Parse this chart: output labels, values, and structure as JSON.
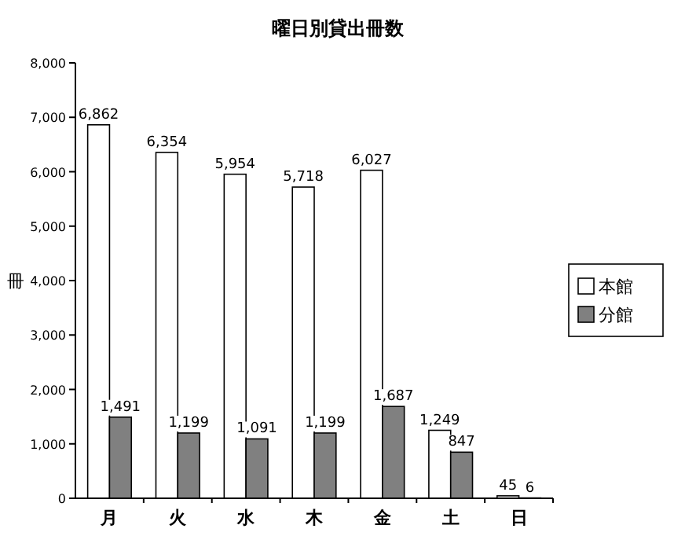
{
  "chart_data": {
    "type": "bar",
    "title": "曜日別貸出冊数",
    "ylabel": "冊",
    "categories": [
      "月",
      "火",
      "水",
      "木",
      "金",
      "土",
      "日"
    ],
    "series": [
      {
        "name": "本館",
        "color": "#ffffff",
        "values": [
          6862,
          6354,
          5954,
          5718,
          6027,
          1249,
          45
        ],
        "value_labels": [
          "6,862",
          "6,354",
          "5,954",
          "5,718",
          "6,027",
          "1,249",
          "45"
        ]
      },
      {
        "name": "分館",
        "color": "#808080",
        "values": [
          1491,
          1199,
          1091,
          1199,
          1687,
          847,
          6
        ],
        "value_labels": [
          "1,491",
          "1,199",
          "1,091",
          "1,199",
          "1,687",
          "847",
          "6"
        ]
      }
    ],
    "ylim": [
      0,
      8000
    ],
    "yticks": [
      0,
      {
        "value": 1000,
        "label": "1,000"
      },
      {
        "value": 2000,
        "label": "2,000"
      },
      {
        "value": 3000,
        "label": "3,000"
      },
      {
        "value": 4000,
        "label": "4,000"
      },
      {
        "value": 5000,
        "label": "5,000"
      },
      {
        "value": 6000,
        "label": "6,000"
      },
      {
        "value": 7000,
        "label": "7,000"
      },
      {
        "value": 8000,
        "label": "8,000"
      }
    ],
    "legend": "right",
    "grid": false
  }
}
